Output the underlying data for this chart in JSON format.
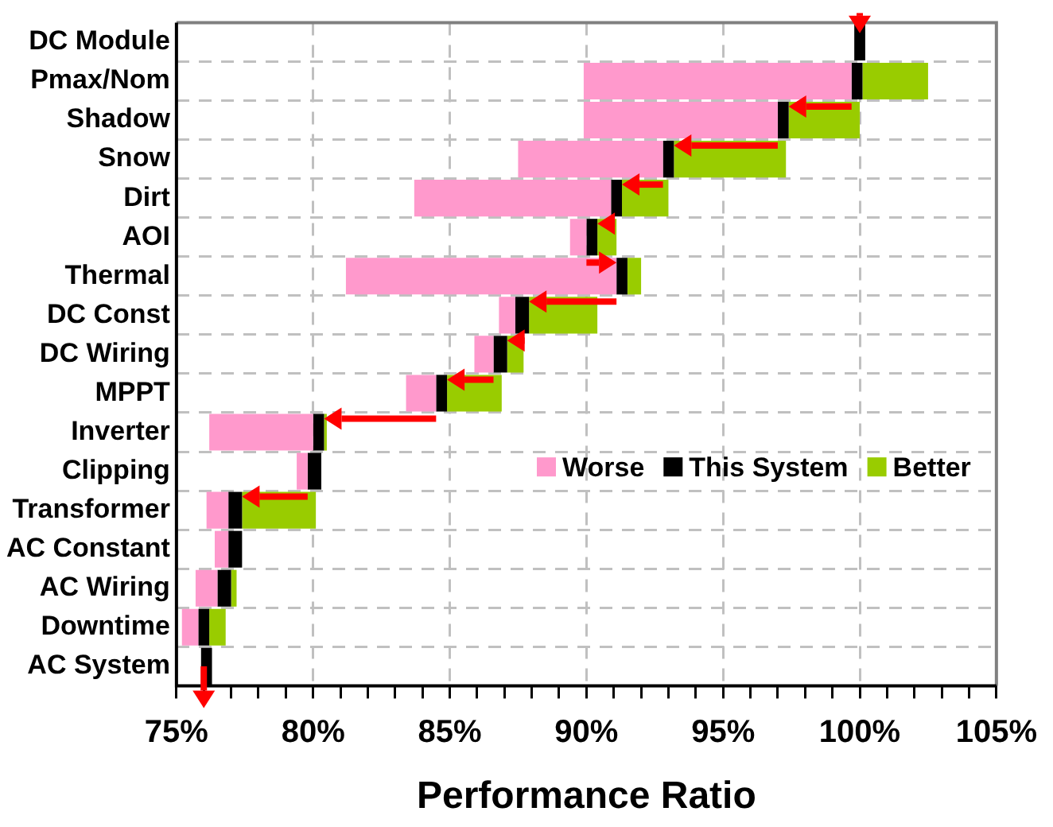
{
  "chart_data": {
    "type": "bar",
    "orientation": "horizontal",
    "xlabel": "Performance Ratio",
    "categories": [
      "DC Module",
      "Pmax/Nom",
      "Shadow",
      "Snow",
      "Dirt",
      "AOI",
      "Thermal",
      "DC Const",
      "DC Wiring",
      "MPPT",
      "Inverter",
      "Clipping",
      "Transformer",
      "AC Constant",
      "AC Wiring",
      "Downtime",
      "AC System"
    ],
    "series": [
      {
        "name": "Worse",
        "color": "#ff99cc",
        "base": [
          null,
          89.9,
          89.9,
          87.5,
          83.7,
          89.4,
          81.2,
          86.8,
          85.9,
          83.4,
          76.2,
          79.4,
          76.1,
          76.4,
          75.7,
          75.2,
          null
        ],
        "values": [
          null,
          9.8,
          7.1,
          5.3,
          7.2,
          0.6,
          9.9,
          0.6,
          0.7,
          1.1,
          3.8,
          0.4,
          0.8,
          0.5,
          0.8,
          0.6,
          null
        ]
      },
      {
        "name": "This System",
        "color": "#000000",
        "base": [
          99.8,
          99.7,
          97.0,
          92.8,
          90.9,
          90.0,
          91.1,
          87.4,
          86.6,
          84.5,
          80.0,
          79.8,
          76.9,
          76.9,
          76.5,
          75.8,
          75.9
        ],
        "values": [
          0.4,
          0.4,
          0.4,
          0.4,
          0.4,
          0.4,
          0.4,
          0.5,
          0.5,
          0.4,
          0.4,
          0.5,
          0.5,
          0.5,
          0.5,
          0.4,
          0.4
        ]
      },
      {
        "name": "Better",
        "color": "#99cc00",
        "base": [
          null,
          100.1,
          97.4,
          93.2,
          91.3,
          90.4,
          91.5,
          87.9,
          87.1,
          84.9,
          80.4,
          null,
          77.4,
          null,
          77.0,
          76.2,
          null
        ],
        "values": [
          null,
          2.4,
          2.6,
          4.1,
          1.7,
          0.7,
          0.5,
          2.5,
          0.6,
          2.0,
          0.1,
          null,
          2.7,
          null,
          0.2,
          0.6,
          null
        ]
      }
    ],
    "xlim": [
      75,
      105
    ],
    "xticks": [
      {
        "value": 75,
        "label": "75%"
      },
      {
        "value": 76,
        "label": null
      },
      {
        "value": 77,
        "label": null
      },
      {
        "value": 78,
        "label": null
      },
      {
        "value": 79,
        "label": null
      },
      {
        "value": 80,
        "label": "80%"
      },
      {
        "value": 81,
        "label": null
      },
      {
        "value": 82,
        "label": null
      },
      {
        "value": 83,
        "label": null
      },
      {
        "value": 84,
        "label": null
      },
      {
        "value": 85,
        "label": "85%"
      },
      {
        "value": 86,
        "label": null
      },
      {
        "value": 87,
        "label": null
      },
      {
        "value": 88,
        "label": null
      },
      {
        "value": 89,
        "label": null
      },
      {
        "value": 90,
        "label": "90%"
      },
      {
        "value": 91,
        "label": null
      },
      {
        "value": 92,
        "label": null
      },
      {
        "value": 93,
        "label": null
      },
      {
        "value": 94,
        "label": null
      },
      {
        "value": 95,
        "label": "95%"
      },
      {
        "value": 96,
        "label": null
      },
      {
        "value": 97,
        "label": null
      },
      {
        "value": 98,
        "label": null
      },
      {
        "value": 99,
        "label": null
      },
      {
        "value": 100,
        "label": "100%"
      },
      {
        "value": 101,
        "label": null
      },
      {
        "value": 102,
        "label": null
      },
      {
        "value": 103,
        "label": null
      },
      {
        "value": 104,
        "label": null
      },
      {
        "value": 105,
        "label": "105%"
      }
    ],
    "grid": true,
    "legend": "bottom right"
  }
}
